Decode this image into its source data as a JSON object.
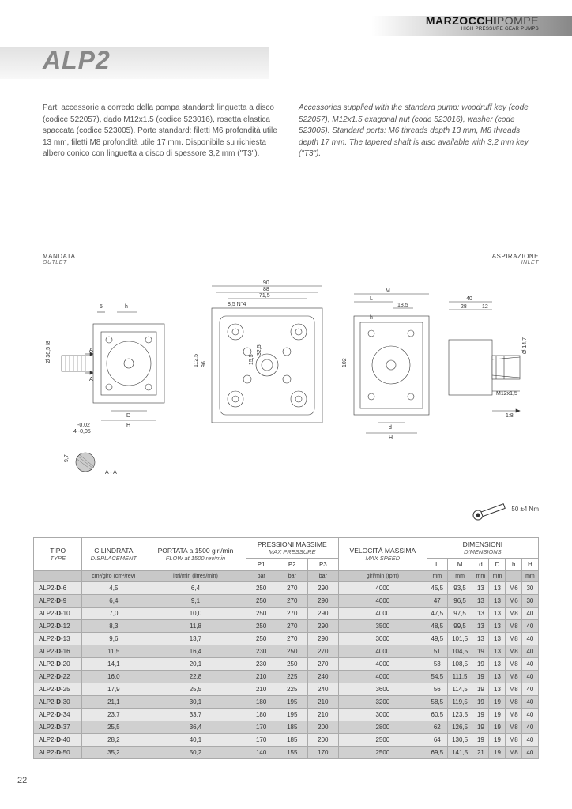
{
  "brand": {
    "main": "MARZOCCHI",
    "light": "POMPE",
    "sub": "HIGH PRESSURE GEAR PUMPS"
  },
  "title": "ALP2",
  "text_it": "Parti accessorie a corredo della pompa standard: linguetta a disco (codice 522057), dado M12x1.5 (codice 523016), rosetta elastica spaccata (codice 523005). Porte standard: filetti M6 profondità utile 13 mm, filetti M8 profondità utile 17 mm. Disponibile su richiesta albero conico con linguetta a disco di spessore 3,2 mm (\"T3\").",
  "text_en": "Accessories supplied with the standard pump: woodruff key (code 522057), M12x1.5 exagonal nut (code 523016), washer (code 523005). Standard ports: M6 threads depth 13 mm, M8 threads depth 17 mm. The tapered shaft is also available with 3,2 mm key (\"T3\").",
  "labels": {
    "outlet_it": "MANDATA",
    "outlet_en": "OUTLET",
    "inlet_it": "ASPIRAZIONE",
    "inlet_en": "INLET"
  },
  "torque_label": "50 ±4 Nm",
  "drawing_dims": {
    "top_w": [
      "90",
      "88",
      "71,5",
      "8,5 N°4"
    ],
    "left": [
      "5",
      "h",
      "A",
      "Ø 36,5 f8",
      "-0,02",
      "4 -0,05",
      "D",
      "H",
      "9,7",
      "A - A"
    ],
    "mid": [
      "112,5",
      "96",
      "15,5",
      "32,5"
    ],
    "right": [
      "M",
      "L",
      "18,5",
      "h",
      "102",
      "d",
      "H",
      "40",
      "28",
      "12",
      "Ø 14,7",
      "M12x1,5",
      "1:8"
    ]
  },
  "table": {
    "headers": {
      "tipo": "TIPO",
      "tipo_en": "TYPE",
      "cil": "CILINDRATA",
      "cil_en": "DISPLACEMENT",
      "flow": "PORTATA a 1500 giri/min",
      "flow_en": "FLOW at 1500 rev/min",
      "press": "PRESSIONI MASSIME",
      "press_en": "MAX PRESSURE",
      "speed": "VELOCITÀ MASSIMA",
      "speed_en": "MAX SPEED",
      "dim": "DIMENSIONI",
      "dim_en": "DIMENSIONS",
      "p1": "P1",
      "p2": "P2",
      "p3": "P3",
      "L": "L",
      "M": "M",
      "d": "d",
      "D": "D",
      "h": "h",
      "H": "H"
    },
    "units": {
      "cil": "cm³/giro (cm³/rev)",
      "flow": "litri/min (litres/min)",
      "bar": "bar",
      "speed": "giri/min (rpm)",
      "mm": "mm"
    },
    "rows": [
      {
        "type": "ALP2-D-6",
        "cil": "4,5",
        "flow": "6,4",
        "p1": "250",
        "p2": "270",
        "p3": "290",
        "speed": "4000",
        "L": "45,5",
        "M": "93,5",
        "d": "13",
        "D": "13",
        "h": "M6",
        "H": "30"
      },
      {
        "type": "ALP2-D-9",
        "cil": "6,4",
        "flow": "9,1",
        "p1": "250",
        "p2": "270",
        "p3": "290",
        "speed": "4000",
        "L": "47",
        "M": "96,5",
        "d": "13",
        "D": "13",
        "h": "M6",
        "H": "30"
      },
      {
        "type": "ALP2-D-10",
        "cil": "7,0",
        "flow": "10,0",
        "p1": "250",
        "p2": "270",
        "p3": "290",
        "speed": "4000",
        "L": "47,5",
        "M": "97,5",
        "d": "13",
        "D": "13",
        "h": "M8",
        "H": "40"
      },
      {
        "type": "ALP2-D-12",
        "cil": "8,3",
        "flow": "11,8",
        "p1": "250",
        "p2": "270",
        "p3": "290",
        "speed": "3500",
        "L": "48,5",
        "M": "99,5",
        "d": "13",
        "D": "13",
        "h": "M8",
        "H": "40"
      },
      {
        "type": "ALP2-D-13",
        "cil": "9,6",
        "flow": "13,7",
        "p1": "250",
        "p2": "270",
        "p3": "290",
        "speed": "3000",
        "L": "49,5",
        "M": "101,5",
        "d": "13",
        "D": "13",
        "h": "M8",
        "H": "40"
      },
      {
        "type": "ALP2-D-16",
        "cil": "11,5",
        "flow": "16,4",
        "p1": "230",
        "p2": "250",
        "p3": "270",
        "speed": "4000",
        "L": "51",
        "M": "104,5",
        "d": "19",
        "D": "13",
        "h": "M8",
        "H": "40"
      },
      {
        "type": "ALP2-D-20",
        "cil": "14,1",
        "flow": "20,1",
        "p1": "230",
        "p2": "250",
        "p3": "270",
        "speed": "4000",
        "L": "53",
        "M": "108,5",
        "d": "19",
        "D": "13",
        "h": "M8",
        "H": "40"
      },
      {
        "type": "ALP2-D-22",
        "cil": "16,0",
        "flow": "22,8",
        "p1": "210",
        "p2": "225",
        "p3": "240",
        "speed": "4000",
        "L": "54,5",
        "M": "111,5",
        "d": "19",
        "D": "13",
        "h": "M8",
        "H": "40"
      },
      {
        "type": "ALP2-D-25",
        "cil": "17,9",
        "flow": "25,5",
        "p1": "210",
        "p2": "225",
        "p3": "240",
        "speed": "3600",
        "L": "56",
        "M": "114,5",
        "d": "19",
        "D": "13",
        "h": "M8",
        "H": "40"
      },
      {
        "type": "ALP2-D-30",
        "cil": "21,1",
        "flow": "30,1",
        "p1": "180",
        "p2": "195",
        "p3": "210",
        "speed": "3200",
        "L": "58,5",
        "M": "119,5",
        "d": "19",
        "D": "19",
        "h": "M8",
        "H": "40"
      },
      {
        "type": "ALP2-D-34",
        "cil": "23,7",
        "flow": "33,7",
        "p1": "180",
        "p2": "195",
        "p3": "210",
        "speed": "3000",
        "L": "60,5",
        "M": "123,5",
        "d": "19",
        "D": "19",
        "h": "M8",
        "H": "40"
      },
      {
        "type": "ALP2-D-37",
        "cil": "25,5",
        "flow": "36,4",
        "p1": "170",
        "p2": "185",
        "p3": "200",
        "speed": "2800",
        "L": "62",
        "M": "126,5",
        "d": "19",
        "D": "19",
        "h": "M8",
        "H": "40"
      },
      {
        "type": "ALP2-D-40",
        "cil": "28,2",
        "flow": "40,1",
        "p1": "170",
        "p2": "185",
        "p3": "200",
        "speed": "2500",
        "L": "64",
        "M": "130,5",
        "d": "19",
        "D": "19",
        "h": "M8",
        "H": "40"
      },
      {
        "type": "ALP2-D-50",
        "cil": "35,2",
        "flow": "50,2",
        "p1": "140",
        "p2": "155",
        "p3": "170",
        "speed": "2500",
        "L": "69,5",
        "M": "141,5",
        "d": "21",
        "D": "19",
        "h": "M8",
        "H": "40"
      }
    ]
  },
  "page_number": "22",
  "colors": {
    "band": "#e2e2e2",
    "title": "#888888",
    "row_odd": "#e8e8e8",
    "row_even": "#d0d0d0",
    "units": "#c8c8c8",
    "border": "#aaaaaa"
  }
}
